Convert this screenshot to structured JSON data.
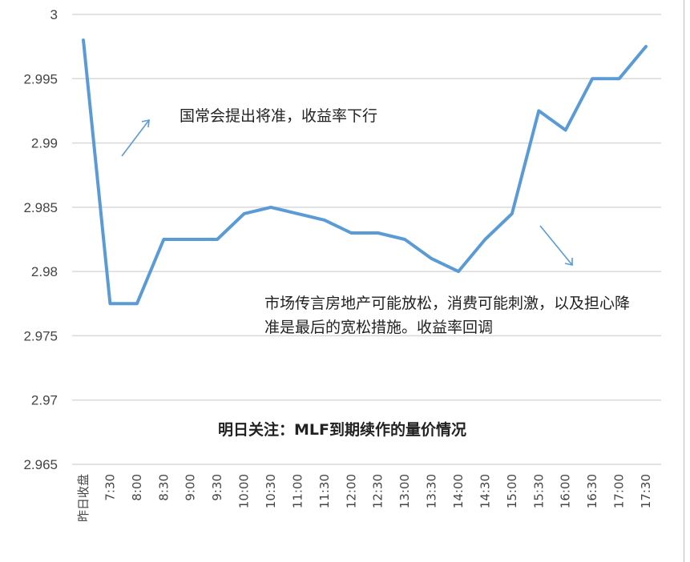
{
  "chart_data": {
    "type": "line",
    "categories": [
      "昨日收盘",
      "7:30",
      "8:00",
      "8:30",
      "9:00",
      "9:30",
      "10:00",
      "10:30",
      "11:00",
      "11:30",
      "12:00",
      "12:30",
      "13:00",
      "13:30",
      "14:00",
      "14:30",
      "15:00",
      "15:30",
      "16:00",
      "16:30",
      "17:00",
      "17:30"
    ],
    "values": [
      2.998,
      2.9775,
      2.9775,
      2.9825,
      2.9825,
      2.9825,
      2.9845,
      2.985,
      2.9845,
      2.984,
      2.983,
      2.983,
      2.9825,
      2.981,
      2.98,
      2.9825,
      2.9845,
      2.9925,
      2.991,
      2.995,
      2.995,
      2.9975
    ],
    "ylim": [
      2.965,
      3.0
    ],
    "yticks": [
      "2.965",
      "2.97",
      "2.975",
      "2.98",
      "2.985",
      "2.99",
      "2.995",
      "3"
    ],
    "grid": true,
    "line_color": "#5b9bd5",
    "annotations": {
      "rise_note": "国常会提出将准，收益率下行",
      "fall_note": "市场传言房地产可能放松，消费可能刺激，以及担心降准是最后的宽松措施。收益率回调",
      "footer_note": "明日关注：MLF到期续作的量价情况"
    }
  }
}
